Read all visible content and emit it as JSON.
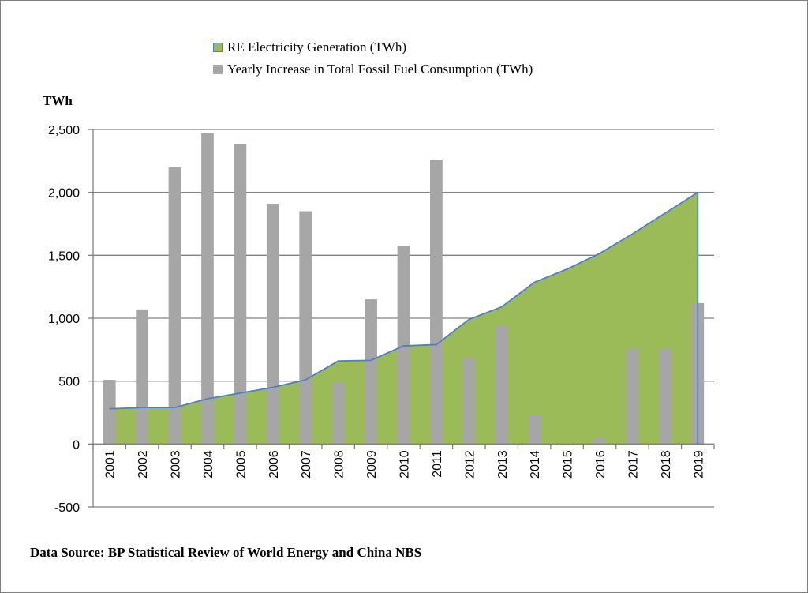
{
  "chart_data": {
    "type": "bar",
    "title": "",
    "ylabel": "TWh",
    "ylim": [
      -500,
      2500
    ],
    "yticks": [
      2500,
      2000,
      1500,
      1000,
      500,
      0,
      -500
    ],
    "ytick_labels": [
      "2,500",
      "2,000",
      "1,500",
      "1,000",
      "500",
      "0",
      "-500"
    ],
    "grid": true,
    "legend_position": "top",
    "categories": [
      "2001",
      "2002",
      "2003",
      "2004",
      "2005",
      "2006",
      "2007",
      "2008",
      "2009",
      "2010",
      "2011",
      "2012",
      "2013",
      "2014",
      "2015",
      "2016",
      "2017",
      "2018",
      "2019"
    ],
    "series": [
      {
        "name": "RE Electricity Generation (TWh)",
        "kind": "area",
        "color": "#9bbb59",
        "line_color": "#4f81bd",
        "values": [
          280,
          290,
          290,
          360,
          405,
          450,
          510,
          660,
          665,
          780,
          790,
          990,
          1090,
          1285,
          1390,
          1515,
          1670,
          1835,
          2000
        ]
      },
      {
        "name": "Yearly Increase in Total Fossil Fuel Consumption  (TWh)",
        "kind": "bar",
        "color": "#a6a6a6",
        "values": [
          510,
          1070,
          2200,
          2470,
          2385,
          1910,
          1850,
          490,
          1150,
          1575,
          2260,
          680,
          940,
          230,
          -10,
          50,
          760,
          760,
          1120
        ]
      }
    ]
  },
  "source_note": "Data Source: BP Statistical Review of World  Energy and China  NBS"
}
